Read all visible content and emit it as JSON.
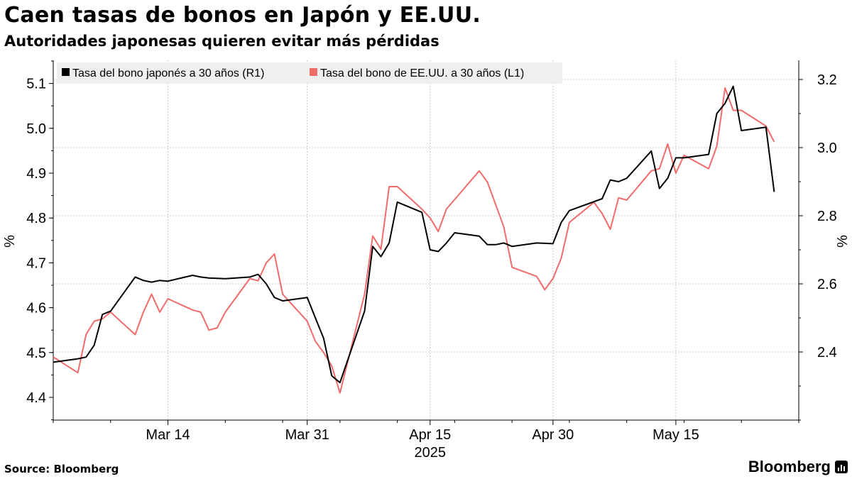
{
  "header": {
    "title": "Caen tasas de bonos en Japón y EE.UU.",
    "subtitle": "Autoridades japonesas quieren evitar más pérdidas"
  },
  "footer": {
    "source": "Source: Bloomberg",
    "brand": "Bloomberg"
  },
  "colors": {
    "japan": "#000000",
    "us": "#f26b6b",
    "grid": "#c8c8c8",
    "legend_bg": "#efefef"
  },
  "chart_data": {
    "type": "line",
    "x_labels": [
      "Mar 14",
      "Mar 31",
      "Apr 15",
      "Apr 30",
      "May 15"
    ],
    "x_year_label": "2025",
    "x_range": [
      "2025-02-28",
      "2025-05-30"
    ],
    "left_axis": {
      "label": "%",
      "ylim": [
        4.35,
        5.15
      ],
      "ticks": [
        4.4,
        4.5,
        4.6,
        4.7,
        4.8,
        4.9,
        5.0,
        5.1
      ]
    },
    "right_axis": {
      "label": "%",
      "ylim": [
        2.2,
        3.25
      ],
      "ticks": [
        2.4,
        2.6,
        2.8,
        3.0,
        3.2
      ]
    },
    "grid": true,
    "legend_position": "top-left",
    "series": [
      {
        "name": "Tasa del bono japonés a 30 años (R1)",
        "axis": "right",
        "color": "#000000",
        "points": [
          [
            "2025-02-28",
            2.37
          ],
          [
            "2025-03-03",
            2.38
          ],
          [
            "2025-03-04",
            2.385
          ],
          [
            "2025-03-05",
            2.42
          ],
          [
            "2025-03-06",
            2.51
          ],
          [
            "2025-03-07",
            2.52
          ],
          [
            "2025-03-10",
            2.62
          ],
          [
            "2025-03-11",
            2.61
          ],
          [
            "2025-03-12",
            2.605
          ],
          [
            "2025-03-13",
            2.61
          ],
          [
            "2025-03-14",
            2.608
          ],
          [
            "2025-03-17",
            2.625
          ],
          [
            "2025-03-18",
            2.62
          ],
          [
            "2025-03-19",
            2.617
          ],
          [
            "2025-03-21",
            2.615
          ],
          [
            "2025-03-24",
            2.62
          ],
          [
            "2025-03-25",
            2.628
          ],
          [
            "2025-03-26",
            2.6
          ],
          [
            "2025-03-27",
            2.56
          ],
          [
            "2025-03-28",
            2.55
          ],
          [
            "2025-03-31",
            2.56
          ],
          [
            "2025-04-01",
            2.5
          ],
          [
            "2025-04-02",
            2.44
          ],
          [
            "2025-04-03",
            2.33
          ],
          [
            "2025-04-04",
            2.31
          ],
          [
            "2025-04-07",
            2.52
          ],
          [
            "2025-04-08",
            2.71
          ],
          [
            "2025-04-09",
            2.68
          ],
          [
            "2025-04-10",
            2.72
          ],
          [
            "2025-04-11",
            2.84
          ],
          [
            "2025-04-14",
            2.81
          ],
          [
            "2025-04-15",
            2.7
          ],
          [
            "2025-04-16",
            2.695
          ],
          [
            "2025-04-17",
            2.72
          ],
          [
            "2025-04-18",
            2.75
          ],
          [
            "2025-04-21",
            2.74
          ],
          [
            "2025-04-22",
            2.715
          ],
          [
            "2025-04-23",
            2.715
          ],
          [
            "2025-04-24",
            2.72
          ],
          [
            "2025-04-25",
            2.71
          ],
          [
            "2025-04-28",
            2.72
          ],
          [
            "2025-04-30",
            2.718
          ],
          [
            "2025-05-01",
            2.78
          ],
          [
            "2025-05-02",
            2.815
          ],
          [
            "2025-05-06",
            2.85
          ],
          [
            "2025-05-07",
            2.905
          ],
          [
            "2025-05-08",
            2.9
          ],
          [
            "2025-05-09",
            2.91
          ],
          [
            "2025-05-12",
            2.99
          ],
          [
            "2025-05-13",
            2.88
          ],
          [
            "2025-05-14",
            2.91
          ],
          [
            "2025-05-15",
            2.97
          ],
          [
            "2025-05-16",
            2.97
          ],
          [
            "2025-05-19",
            2.98
          ],
          [
            "2025-05-20",
            3.1
          ],
          [
            "2025-05-21",
            3.13
          ],
          [
            "2025-05-22",
            3.18
          ],
          [
            "2025-05-23",
            3.05
          ],
          [
            "2025-05-26",
            3.06
          ],
          [
            "2025-05-27",
            2.87
          ]
        ]
      },
      {
        "name": "Tasa del bono de EE.UU. a 30 años (L1)",
        "axis": "left",
        "color": "#f26b6b",
        "points": [
          [
            "2025-02-28",
            4.49
          ],
          [
            "2025-03-03",
            4.455
          ],
          [
            "2025-03-04",
            4.54
          ],
          [
            "2025-03-05",
            4.57
          ],
          [
            "2025-03-06",
            4.575
          ],
          [
            "2025-03-07",
            4.59
          ],
          [
            "2025-03-10",
            4.54
          ],
          [
            "2025-03-11",
            4.59
          ],
          [
            "2025-03-12",
            4.63
          ],
          [
            "2025-03-13",
            4.59
          ],
          [
            "2025-03-14",
            4.62
          ],
          [
            "2025-03-17",
            4.595
          ],
          [
            "2025-03-18",
            4.59
          ],
          [
            "2025-03-19",
            4.55
          ],
          [
            "2025-03-20",
            4.555
          ],
          [
            "2025-03-21",
            4.59
          ],
          [
            "2025-03-24",
            4.665
          ],
          [
            "2025-03-25",
            4.66
          ],
          [
            "2025-03-26",
            4.7
          ],
          [
            "2025-03-27",
            4.72
          ],
          [
            "2025-03-28",
            4.63
          ],
          [
            "2025-03-31",
            4.57
          ],
          [
            "2025-04-01",
            4.525
          ],
          [
            "2025-04-02",
            4.5
          ],
          [
            "2025-04-03",
            4.47
          ],
          [
            "2025-04-04",
            4.41
          ],
          [
            "2025-04-07",
            4.63
          ],
          [
            "2025-04-08",
            4.76
          ],
          [
            "2025-04-09",
            4.73
          ],
          [
            "2025-04-10",
            4.87
          ],
          [
            "2025-04-11",
            4.87
          ],
          [
            "2025-04-14",
            4.82
          ],
          [
            "2025-04-15",
            4.8
          ],
          [
            "2025-04-16",
            4.77
          ],
          [
            "2025-04-17",
            4.82
          ],
          [
            "2025-04-21",
            4.905
          ],
          [
            "2025-04-22",
            4.88
          ],
          [
            "2025-04-23",
            4.83
          ],
          [
            "2025-04-24",
            4.78
          ],
          [
            "2025-04-25",
            4.69
          ],
          [
            "2025-04-28",
            4.67
          ],
          [
            "2025-04-29",
            4.64
          ],
          [
            "2025-04-30",
            4.665
          ],
          [
            "2025-05-01",
            4.71
          ],
          [
            "2025-05-02",
            4.79
          ],
          [
            "2025-05-05",
            4.835
          ],
          [
            "2025-05-06",
            4.81
          ],
          [
            "2025-05-07",
            4.775
          ],
          [
            "2025-05-08",
            4.845
          ],
          [
            "2025-05-09",
            4.84
          ],
          [
            "2025-05-12",
            4.905
          ],
          [
            "2025-05-13",
            4.91
          ],
          [
            "2025-05-14",
            4.965
          ],
          [
            "2025-05-15",
            4.9
          ],
          [
            "2025-05-16",
            4.94
          ],
          [
            "2025-05-19",
            4.91
          ],
          [
            "2025-05-20",
            4.96
          ],
          [
            "2025-05-21",
            5.09
          ],
          [
            "2025-05-22",
            5.04
          ],
          [
            "2025-05-23",
            5.04
          ],
          [
            "2025-05-26",
            5.005
          ],
          [
            "2025-05-27",
            4.97
          ]
        ]
      }
    ]
  }
}
